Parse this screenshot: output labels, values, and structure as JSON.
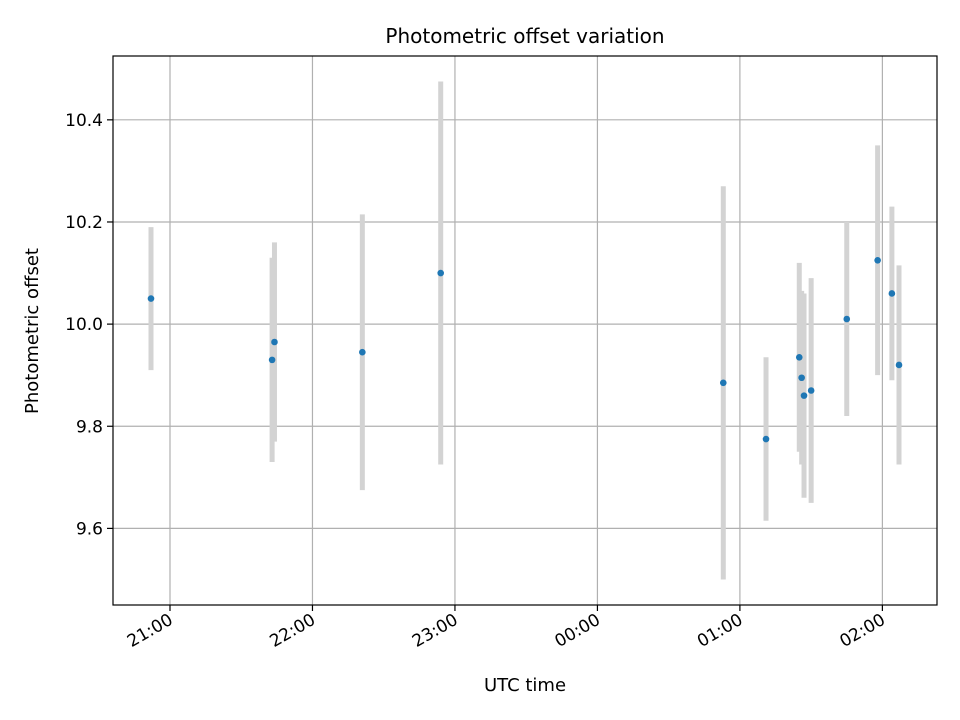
{
  "chart_data": {
    "type": "scatter",
    "title": "Photometric offset variation",
    "xlabel": "UTC time",
    "ylabel": "Photometric offset",
    "xlim": [
      "2024-01-01T20:36:00",
      "2024-01-02T02:23:00"
    ],
    "ylim": [
      9.45,
      10.525
    ],
    "grid": true,
    "x_ticks": [
      {
        "value": "2024-01-01T21:00:00",
        "label": "21:00"
      },
      {
        "value": "2024-01-01T22:00:00",
        "label": "22:00"
      },
      {
        "value": "2024-01-01T23:00:00",
        "label": "23:00"
      },
      {
        "value": "2024-01-02T00:00:00",
        "label": "00:00"
      },
      {
        "value": "2024-01-02T01:00:00",
        "label": "01:00"
      },
      {
        "value": "2024-01-02T02:00:00",
        "label": "02:00"
      }
    ],
    "y_ticks": [
      {
        "value": 9.6,
        "label": "9.6"
      },
      {
        "value": 9.8,
        "label": "9.8"
      },
      {
        "value": 10.0,
        "label": "10.0"
      },
      {
        "value": 10.2,
        "label": "10.2"
      },
      {
        "value": 10.4,
        "label": "10.4"
      }
    ],
    "colors": {
      "point": "#1f77b4",
      "errorbar": "#d3d3d3"
    },
    "points": [
      {
        "x": "2024-01-01T20:52:00",
        "y": 10.05,
        "err": 0.14
      },
      {
        "x": "2024-01-01T21:43:00",
        "y": 9.93,
        "err": 0.2
      },
      {
        "x": "2024-01-01T21:44:00",
        "y": 9.965,
        "err": 0.195
      },
      {
        "x": "2024-01-01T22:21:00",
        "y": 9.945,
        "err": 0.27
      },
      {
        "x": "2024-01-01T22:54:00",
        "y": 10.1,
        "err": 0.375
      },
      {
        "x": "2024-01-02T00:53:00",
        "y": 9.885,
        "err": 0.385
      },
      {
        "x": "2024-01-02T01:11:00",
        "y": 9.775,
        "err": 0.16
      },
      {
        "x": "2024-01-02T01:25:00",
        "y": 9.935,
        "err": 0.185
      },
      {
        "x": "2024-01-02T01:26:00",
        "y": 9.895,
        "err": 0.17
      },
      {
        "x": "2024-01-02T01:27:00",
        "y": 9.86,
        "err": 0.2
      },
      {
        "x": "2024-01-02T01:30:00",
        "y": 9.87,
        "err": 0.22
      },
      {
        "x": "2024-01-02T01:45:00",
        "y": 10.01,
        "err": 0.19
      },
      {
        "x": "2024-01-02T01:58:00",
        "y": 10.125,
        "err": 0.225
      },
      {
        "x": "2024-01-02T02:04:00",
        "y": 10.06,
        "err": 0.17
      },
      {
        "x": "2024-01-02T02:07:00",
        "y": 9.92,
        "err": 0.195
      }
    ]
  }
}
